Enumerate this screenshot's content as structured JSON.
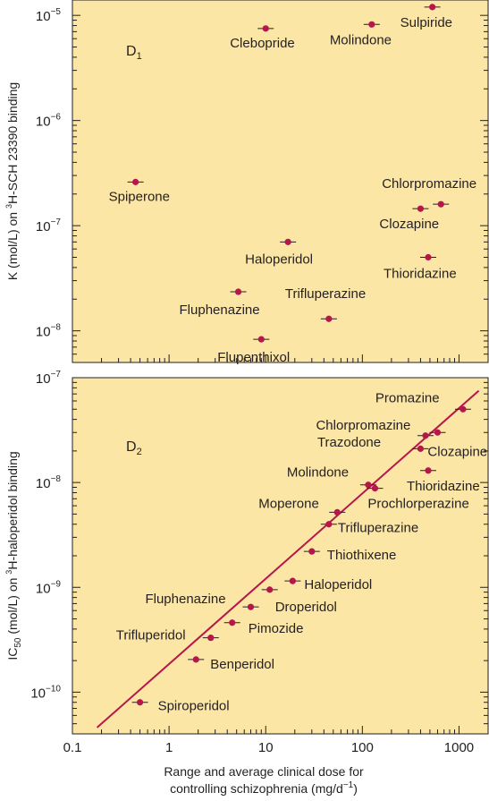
{
  "colors": {
    "panel_bg": "#fbe6a6",
    "marker": "#b5174a",
    "line": "#b5174a",
    "axis": "#231f20"
  },
  "chart_data": [
    {
      "type": "scatter",
      "panel_label": "D1",
      "ylabel": "K (mol/L) on 3H-SCH 23390 binding",
      "xscale": "log",
      "yscale": "log",
      "xlim": [
        0.1,
        2000
      ],
      "ylim": [
        5e-09,
        1.4e-05
      ],
      "yticks": [
        1e-05,
        1e-06,
        1e-07,
        1e-08
      ],
      "ytick_labels": [
        {
          "base": "10",
          "exp": "−5"
        },
        {
          "base": "10",
          "exp": "−6"
        },
        {
          "base": "10",
          "exp": "−7"
        },
        {
          "base": "10",
          "exp": "−8"
        }
      ],
      "grid": false,
      "points": [
        {
          "name": "Spiperone",
          "x": 0.45,
          "y": 2.6e-07
        },
        {
          "name": "Clebopride",
          "x": 10,
          "y": 7.5e-06
        },
        {
          "name": "Molindone",
          "x": 125,
          "y": 8.2e-06
        },
        {
          "name": "Sulpiride",
          "x": 530,
          "y": 1.2e-05
        },
        {
          "name": "Chlorpromazine",
          "x": 650,
          "y": 1.6e-07
        },
        {
          "name": "Clozapine",
          "x": 400,
          "y": 1.45e-07
        },
        {
          "name": "Haloperidol",
          "x": 17,
          "y": 7e-08
        },
        {
          "name": "Thioridazine",
          "x": 480,
          "y": 5e-08
        },
        {
          "name": "Fluphenazine",
          "x": 5.2,
          "y": 2.35e-08
        },
        {
          "name": "Trifluperazine",
          "x": 45,
          "y": 1.3e-08
        },
        {
          "name": "Flupenthixol",
          "x": 9,
          "y": 8.3e-09
        }
      ]
    },
    {
      "type": "scatter",
      "panel_label": "D2",
      "ylabel": "IC50 (mol/L) on 3H-haloperidol binding",
      "xlabel": "Range and average clinical dose for controlling schizophrenia (mg/d−1)",
      "xscale": "log",
      "yscale": "log",
      "xlim": [
        0.1,
        2000
      ],
      "ylim": [
        4e-11,
        1e-07
      ],
      "xticks": [
        0.1,
        1,
        10,
        100,
        1000
      ],
      "xtick_labels": [
        "0.1",
        "1",
        "10",
        "100",
        "1000"
      ],
      "yticks": [
        1e-07,
        1e-08,
        1e-09,
        1e-10
      ],
      "ytick_labels": [
        {
          "base": "10",
          "exp": "−7"
        },
        {
          "base": "10",
          "exp": "−8"
        },
        {
          "base": "10",
          "exp": "−9"
        },
        {
          "base": "10",
          "exp": "−10"
        }
      ],
      "grid": false,
      "fit_line": {
        "x": [
          0.18,
          1600
        ],
        "y": [
          4.6e-11,
          7.5e-08
        ]
      },
      "points": [
        {
          "name": "Promazine",
          "x": 1100,
          "y": 5e-08
        },
        {
          "name": "Chlorpromazine",
          "x": 600,
          "y": 3e-08
        },
        {
          "name": "Trazodone",
          "x": 450,
          "y": 2.8e-08
        },
        {
          "name": "Clozapine",
          "x": 400,
          "y": 2.1e-08
        },
        {
          "name": "Thioridazine",
          "x": 480,
          "y": 1.3e-08
        },
        {
          "name": "Molindone",
          "x": 115,
          "y": 9.5e-09
        },
        {
          "name": "Prochlorperazine",
          "x": 135,
          "y": 8.8e-09
        },
        {
          "name": "Moperone",
          "x": 55,
          "y": 5.2e-09
        },
        {
          "name": "Trifluperazine",
          "x": 45,
          "y": 4e-09
        },
        {
          "name": "Thiothixene",
          "x": 30,
          "y": 2.2e-09
        },
        {
          "name": "Haloperidol",
          "x": 19,
          "y": 1.15e-09
        },
        {
          "name": "Droperidol",
          "x": 11,
          "y": 9.5e-10
        },
        {
          "name": "Fluphenazine",
          "x": 7,
          "y": 6.5e-10
        },
        {
          "name": "Pimozide",
          "x": 4.5,
          "y": 4.6e-10
        },
        {
          "name": "Trifluperidol",
          "x": 2.7,
          "y": 3.3e-10
        },
        {
          "name": "Benperidol",
          "x": 1.9,
          "y": 2.05e-10
        },
        {
          "name": "Spiroperidol",
          "x": 0.5,
          "y": 8e-11
        }
      ]
    }
  ]
}
